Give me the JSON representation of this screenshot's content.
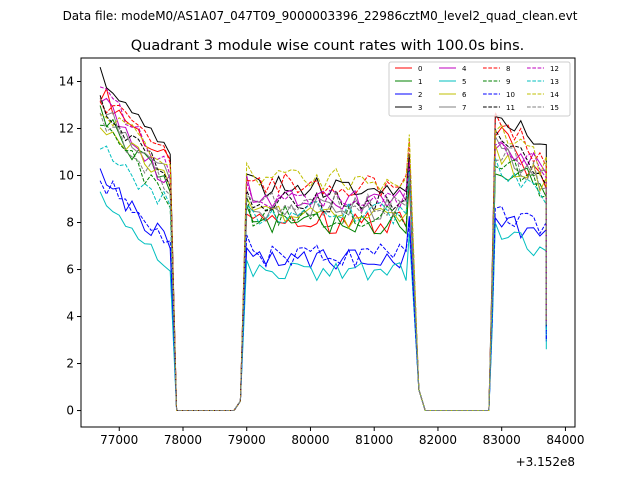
{
  "suptitle": "Data file: modeM0/AS1A07_047T09_9000003396_22986cztM0_level2_quad_clean.evt",
  "chart_data": {
    "type": "line",
    "title": "Quadrant 3 module wise count rates with 100.0s bins.",
    "xlabel": "",
    "ylabel": "",
    "x_offset_label": "+3.152e8",
    "xlim": [
      76400,
      84150
    ],
    "ylim": [
      -0.7,
      15.0
    ],
    "x_ticks": [
      77000,
      78000,
      79000,
      80000,
      81000,
      82000,
      83000,
      84000
    ],
    "y_ticks": [
      0,
      2,
      4,
      6,
      8,
      10,
      12,
      14
    ],
    "grid": false,
    "legend_position": "upper right",
    "gaps": [
      {
        "start": 77900,
        "end": 78900,
        "value": 0
      },
      {
        "start": 81700,
        "end": 82800,
        "value": 0
      }
    ],
    "segments": [
      {
        "start": 76700,
        "end": 77800,
        "bins": 12,
        "shape": "decline"
      },
      {
        "start": 79000,
        "end": 81500,
        "bins": 26,
        "shape": "flat"
      },
      {
        "start": 82900,
        "end": 83700,
        "bins": 9,
        "shape": "peak-decline"
      }
    ],
    "series": [
      {
        "name": "0",
        "color": "#ff0000",
        "dash": "solid",
        "levels": [
          13.6,
          10.4,
          8.0,
          11.8,
          9.6
        ]
      },
      {
        "name": "1",
        "color": "#008000",
        "dash": "solid",
        "levels": [
          12.6,
          9.3,
          8.0,
          10.6,
          9.3
        ]
      },
      {
        "name": "2",
        "color": "#0000ff",
        "dash": "solid",
        "levels": [
          9.9,
          7.0,
          6.4,
          8.0,
          7.6
        ]
      },
      {
        "name": "3",
        "color": "#000000",
        "dash": "solid",
        "levels": [
          14.3,
          10.8,
          9.5,
          13.0,
          10.8
        ]
      },
      {
        "name": "4",
        "color": "#bf00bf",
        "dash": "solid",
        "levels": [
          13.4,
          9.6,
          8.9,
          11.2,
          10.2
        ]
      },
      {
        "name": "5",
        "color": "#00bfbf",
        "dash": "solid",
        "levels": [
          8.9,
          6.2,
          5.9,
          7.6,
          6.6
        ]
      },
      {
        "name": "6",
        "color": "#bfbf00",
        "dash": "solid",
        "levels": [
          12.4,
          9.6,
          8.2,
          10.8,
          9.7
        ]
      },
      {
        "name": "7",
        "color": "#808080",
        "dash": "solid",
        "levels": [
          13.0,
          9.9,
          8.6,
          11.4,
          9.9
        ]
      },
      {
        "name": "8",
        "color": "#ff0000",
        "dash": "dashed",
        "levels": [
          13.3,
          10.8,
          9.6,
          12.4,
          10.5
        ]
      },
      {
        "name": "9",
        "color": "#008000",
        "dash": "dashed",
        "levels": [
          12.2,
          8.8,
          8.3,
          10.6,
          9.4
        ]
      },
      {
        "name": "10",
        "color": "#0000ff",
        "dash": "dashed",
        "levels": [
          9.8,
          7.3,
          6.6,
          8.6,
          7.7
        ]
      },
      {
        "name": "11",
        "color": "#000000",
        "dash": "dashed",
        "levels": [
          13.1,
          9.7,
          8.9,
          11.7,
          10.0
        ]
      },
      {
        "name": "12",
        "color": "#bf00bf",
        "dash": "dashed",
        "levels": [
          13.6,
          10.2,
          9.0,
          11.6,
          10.2
        ]
      },
      {
        "name": "13",
        "color": "#00bfbf",
        "dash": "dashed",
        "levels": [
          11.1,
          8.7,
          8.4,
          10.4,
          8.8
        ]
      },
      {
        "name": "14",
        "color": "#bfbf00",
        "dash": "dashed",
        "levels": [
          12.9,
          10.6,
          9.8,
          12.0,
          10.3
        ]
      },
      {
        "name": "15",
        "color": "#808080",
        "dash": "dashed",
        "levels": [
          12.4,
          9.5,
          8.8,
          11.1,
          9.8
        ]
      }
    ]
  }
}
